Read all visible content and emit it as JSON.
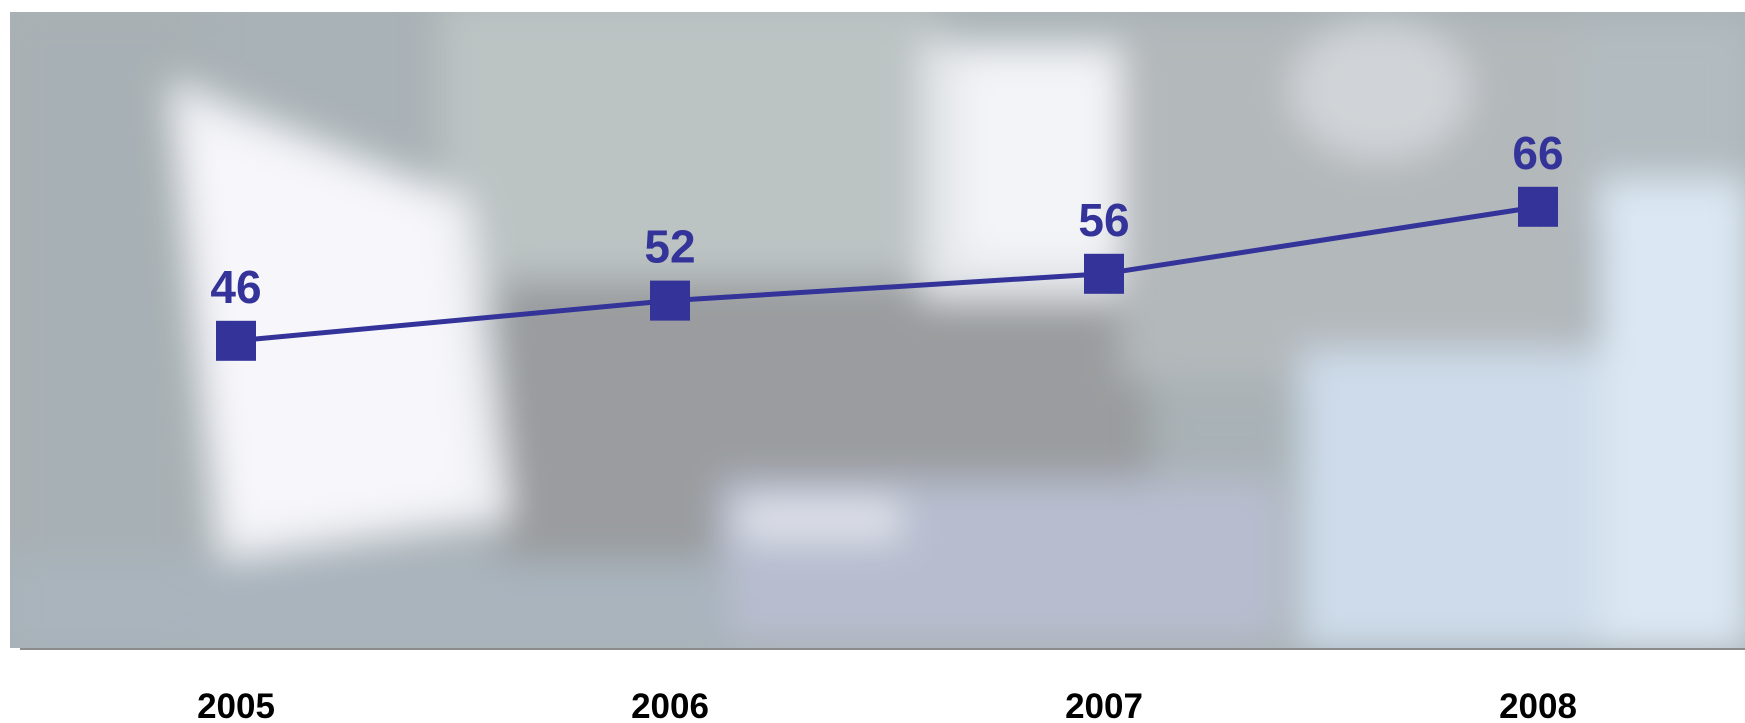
{
  "colors": {
    "series": "#333399",
    "axis": "#8c8c8c",
    "tick_text": "#000000"
  },
  "background": {
    "type": "blurred-photo",
    "description_icon": "photo-background"
  },
  "chart_data": {
    "type": "line",
    "title": "",
    "xlabel": "",
    "ylabel": "",
    "categories": [
      "2005",
      "2006",
      "2007",
      "2008"
    ],
    "series": [
      {
        "values": [
          46,
          52,
          56,
          66
        ],
        "marker": "square",
        "data_labels": [
          "46",
          "52",
          "56",
          "66"
        ]
      }
    ],
    "ylim": [
      0,
      100
    ],
    "grid": false,
    "legend": "none"
  }
}
